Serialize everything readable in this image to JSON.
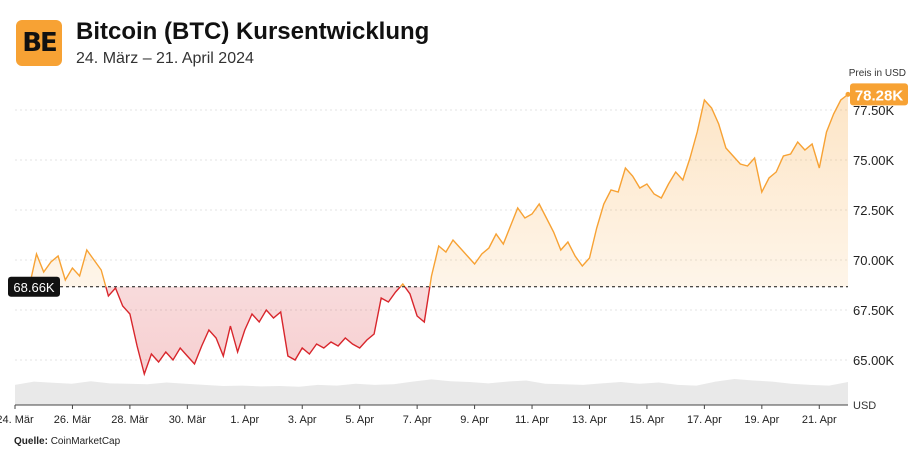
{
  "header": {
    "logo_text": "BE",
    "title": "Bitcoin (BTC) Kursentwicklung",
    "subtitle": "24. März – 21. April 2024"
  },
  "axis": {
    "unit_top": "Preis in USD",
    "unit_bottom": "USD"
  },
  "footer": {
    "source_label": "Quelle:",
    "source_value": "CoinMarketCap"
  },
  "colors": {
    "up": "#f7a234",
    "down": "#d8262c",
    "baseline_badge": "#111111",
    "last_badge": "#f7a234"
  },
  "chart_data": {
    "type": "area",
    "x_start": "2024-03-24",
    "x_end": "2024-04-21",
    "ylim": [
      63500,
      79000
    ],
    "yticks": [
      65000,
      67500,
      70000,
      72500,
      75000,
      77500
    ],
    "ytick_labels": [
      "65.00K",
      "67.50K",
      "70.00K",
      "72.50K",
      "75.00K",
      "77.50K"
    ],
    "xtick_dates": [
      "2024-03-24",
      "2024-03-26",
      "2024-03-28",
      "2024-03-30",
      "2024-04-01",
      "2024-04-03",
      "2024-04-05",
      "2024-04-07",
      "2024-04-09",
      "2024-04-11",
      "2024-04-13",
      "2024-04-15",
      "2024-04-17",
      "2024-04-19",
      "2024-04-21"
    ],
    "xtick_labels": [
      "24. Mär",
      "26. Mär",
      "28. Mär",
      "30. Mär",
      "1. Apr",
      "3. Apr",
      "5. Apr",
      "7. Apr",
      "9. Apr",
      "11. Apr",
      "13. Apr",
      "15. Apr",
      "17. Apr",
      "19. Apr",
      "21. Apr"
    ],
    "baseline": 68660,
    "baseline_label": "68.66K",
    "last_value": 78280,
    "last_label": "78.28K",
    "grid": true,
    "series": [
      {
        "points": [
          [
            "2024-03-24 12:00",
            68700
          ],
          [
            "2024-03-24 18:00",
            70300
          ],
          [
            "2024-03-25 00:00",
            69400
          ],
          [
            "2024-03-25 06:00",
            69900
          ],
          [
            "2024-03-25 12:00",
            70200
          ],
          [
            "2024-03-25 18:00",
            69000
          ],
          [
            "2024-03-26 00:00",
            69600
          ],
          [
            "2024-03-26 06:00",
            69200
          ],
          [
            "2024-03-26 12:00",
            70500
          ],
          [
            "2024-03-26 18:00",
            70000
          ],
          [
            "2024-03-27 00:00",
            69500
          ],
          [
            "2024-03-27 06:00",
            68200
          ],
          [
            "2024-03-27 12:00",
            68600
          ],
          [
            "2024-03-27 18:00",
            67700
          ],
          [
            "2024-03-28 00:00",
            67300
          ],
          [
            "2024-03-28 06:00",
            65700
          ],
          [
            "2024-03-28 12:00",
            64300
          ],
          [
            "2024-03-28 18:00",
            65300
          ],
          [
            "2024-03-29 00:00",
            64900
          ],
          [
            "2024-03-29 06:00",
            65400
          ],
          [
            "2024-03-29 12:00",
            65000
          ],
          [
            "2024-03-29 18:00",
            65600
          ],
          [
            "2024-03-30 00:00",
            65200
          ],
          [
            "2024-03-30 06:00",
            64800
          ],
          [
            "2024-03-30 12:00",
            65700
          ],
          [
            "2024-03-30 18:00",
            66500
          ],
          [
            "2024-03-31 00:00",
            66100
          ],
          [
            "2024-03-31 06:00",
            65200
          ],
          [
            "2024-03-31 12:00",
            66700
          ],
          [
            "2024-03-31 18:00",
            65400
          ],
          [
            "2024-04-01 00:00",
            66500
          ],
          [
            "2024-04-01 06:00",
            67300
          ],
          [
            "2024-04-01 12:00",
            66900
          ],
          [
            "2024-04-01 18:00",
            67500
          ],
          [
            "2024-04-02 00:00",
            67100
          ],
          [
            "2024-04-02 06:00",
            67400
          ],
          [
            "2024-04-02 12:00",
            65200
          ],
          [
            "2024-04-02 18:00",
            65000
          ],
          [
            "2024-04-03 00:00",
            65600
          ],
          [
            "2024-04-03 06:00",
            65300
          ],
          [
            "2024-04-03 12:00",
            65800
          ],
          [
            "2024-04-03 18:00",
            65600
          ],
          [
            "2024-04-04 00:00",
            65900
          ],
          [
            "2024-04-04 06:00",
            65700
          ],
          [
            "2024-04-04 12:00",
            66100
          ],
          [
            "2024-04-04 18:00",
            65800
          ],
          [
            "2024-04-05 00:00",
            65600
          ],
          [
            "2024-04-05 06:00",
            66000
          ],
          [
            "2024-04-05 12:00",
            66300
          ],
          [
            "2024-04-05 18:00",
            68100
          ],
          [
            "2024-04-06 00:00",
            67900
          ],
          [
            "2024-04-06 06:00",
            68400
          ],
          [
            "2024-04-06 12:00",
            68800
          ],
          [
            "2024-04-06 18:00",
            68300
          ],
          [
            "2024-04-07 00:00",
            67200
          ],
          [
            "2024-04-07 06:00",
            66900
          ],
          [
            "2024-04-07 12:00",
            69200
          ],
          [
            "2024-04-07 18:00",
            70700
          ],
          [
            "2024-04-08 00:00",
            70400
          ],
          [
            "2024-04-08 06:00",
            71000
          ],
          [
            "2024-04-08 12:00",
            70600
          ],
          [
            "2024-04-08 18:00",
            70200
          ],
          [
            "2024-04-09 00:00",
            69800
          ],
          [
            "2024-04-09 06:00",
            70300
          ],
          [
            "2024-04-09 12:00",
            70600
          ],
          [
            "2024-04-09 18:00",
            71300
          ],
          [
            "2024-04-10 00:00",
            70800
          ],
          [
            "2024-04-10 06:00",
            71700
          ],
          [
            "2024-04-10 12:00",
            72600
          ],
          [
            "2024-04-10 18:00",
            72100
          ],
          [
            "2024-04-11 00:00",
            72300
          ],
          [
            "2024-04-11 06:00",
            72800
          ],
          [
            "2024-04-11 12:00",
            72100
          ],
          [
            "2024-04-11 18:00",
            71400
          ],
          [
            "2024-04-12 00:00",
            70500
          ],
          [
            "2024-04-12 06:00",
            70900
          ],
          [
            "2024-04-12 12:00",
            70200
          ],
          [
            "2024-04-12 18:00",
            69700
          ],
          [
            "2024-04-13 00:00",
            70100
          ],
          [
            "2024-04-13 06:00",
            71600
          ],
          [
            "2024-04-13 12:00",
            72800
          ],
          [
            "2024-04-13 18:00",
            73500
          ],
          [
            "2024-04-14 00:00",
            73400
          ],
          [
            "2024-04-14 06:00",
            74600
          ],
          [
            "2024-04-14 12:00",
            74200
          ],
          [
            "2024-04-14 18:00",
            73600
          ],
          [
            "2024-04-15 00:00",
            73800
          ],
          [
            "2024-04-15 06:00",
            73300
          ],
          [
            "2024-04-15 12:00",
            73100
          ],
          [
            "2024-04-15 18:00",
            73800
          ],
          [
            "2024-04-16 00:00",
            74400
          ],
          [
            "2024-04-16 06:00",
            74000
          ],
          [
            "2024-04-16 12:00",
            75100
          ],
          [
            "2024-04-16 18:00",
            76400
          ],
          [
            "2024-04-17 00:00",
            78000
          ],
          [
            "2024-04-17 06:00",
            77600
          ],
          [
            "2024-04-17 12:00",
            76800
          ],
          [
            "2024-04-17 18:00",
            75600
          ],
          [
            "2024-04-18 00:00",
            75200
          ],
          [
            "2024-04-18 06:00",
            74800
          ],
          [
            "2024-04-18 12:00",
            74700
          ],
          [
            "2024-04-18 18:00",
            75100
          ],
          [
            "2024-04-19 00:00",
            73400
          ],
          [
            "2024-04-19 06:00",
            74100
          ],
          [
            "2024-04-19 12:00",
            74400
          ],
          [
            "2024-04-19 18:00",
            75200
          ],
          [
            "2024-04-20 00:00",
            75300
          ],
          [
            "2024-04-20 06:00",
            75900
          ],
          [
            "2024-04-20 12:00",
            75500
          ],
          [
            "2024-04-20 18:00",
            75800
          ],
          [
            "2024-04-21 00:00",
            74600
          ],
          [
            "2024-04-21 06:00",
            76400
          ],
          [
            "2024-04-21 12:00",
            77300
          ],
          [
            "2024-04-21 18:00",
            78000
          ],
          [
            "2024-04-22 00:00",
            78280
          ]
        ]
      }
    ],
    "volume_profile": [
      0.55,
      0.7,
      0.65,
      0.6,
      0.72,
      0.62,
      0.6,
      0.58,
      0.66,
      0.6,
      0.55,
      0.5,
      0.52,
      0.48,
      0.5,
      0.47,
      0.55,
      0.52,
      0.6,
      0.55,
      0.58,
      0.7,
      0.8,
      0.72,
      0.68,
      0.62,
      0.7,
      0.75,
      0.6,
      0.58,
      0.55,
      0.62,
      0.68,
      0.6,
      0.66,
      0.55,
      0.52,
      0.7,
      0.82,
      0.75,
      0.7,
      0.6,
      0.55,
      0.52,
      0.68
    ]
  }
}
